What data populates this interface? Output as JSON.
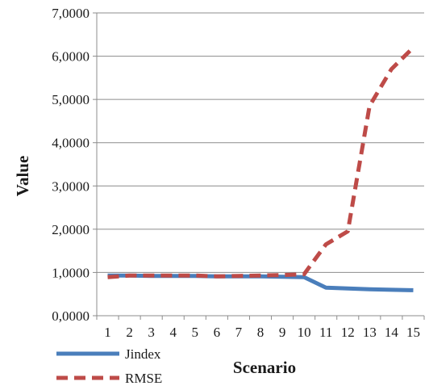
{
  "chart_data": {
    "type": "line",
    "title": "",
    "xlabel": "Scenario",
    "ylabel": "Value",
    "categories": [
      "1",
      "2",
      "3",
      "4",
      "5",
      "6",
      "7",
      "8",
      "9",
      "10",
      "11",
      "12",
      "13",
      "14",
      "15"
    ],
    "y_ticks": [
      "0,0000",
      "1,0000",
      "2,0000",
      "3,0000",
      "4,0000",
      "5,0000",
      "6,0000",
      "7,0000"
    ],
    "ylim": [
      0,
      7
    ],
    "grid": true,
    "legend_position": "bottom-left",
    "series": [
      {
        "name": "Jindex",
        "color": "#4a7ebb",
        "style": "solid",
        "values": [
          0.93,
          0.93,
          0.92,
          0.92,
          0.92,
          0.91,
          0.91,
          0.91,
          0.9,
          0.89,
          0.65,
          0.63,
          0.61,
          0.6,
          0.59
        ]
      },
      {
        "name": "RMSE",
        "color": "#be4b48",
        "style": "dashed",
        "values": [
          0.89,
          0.93,
          0.93,
          0.93,
          0.93,
          0.91,
          0.92,
          0.93,
          0.94,
          0.96,
          1.65,
          1.95,
          4.85,
          5.7,
          6.2
        ]
      }
    ]
  }
}
